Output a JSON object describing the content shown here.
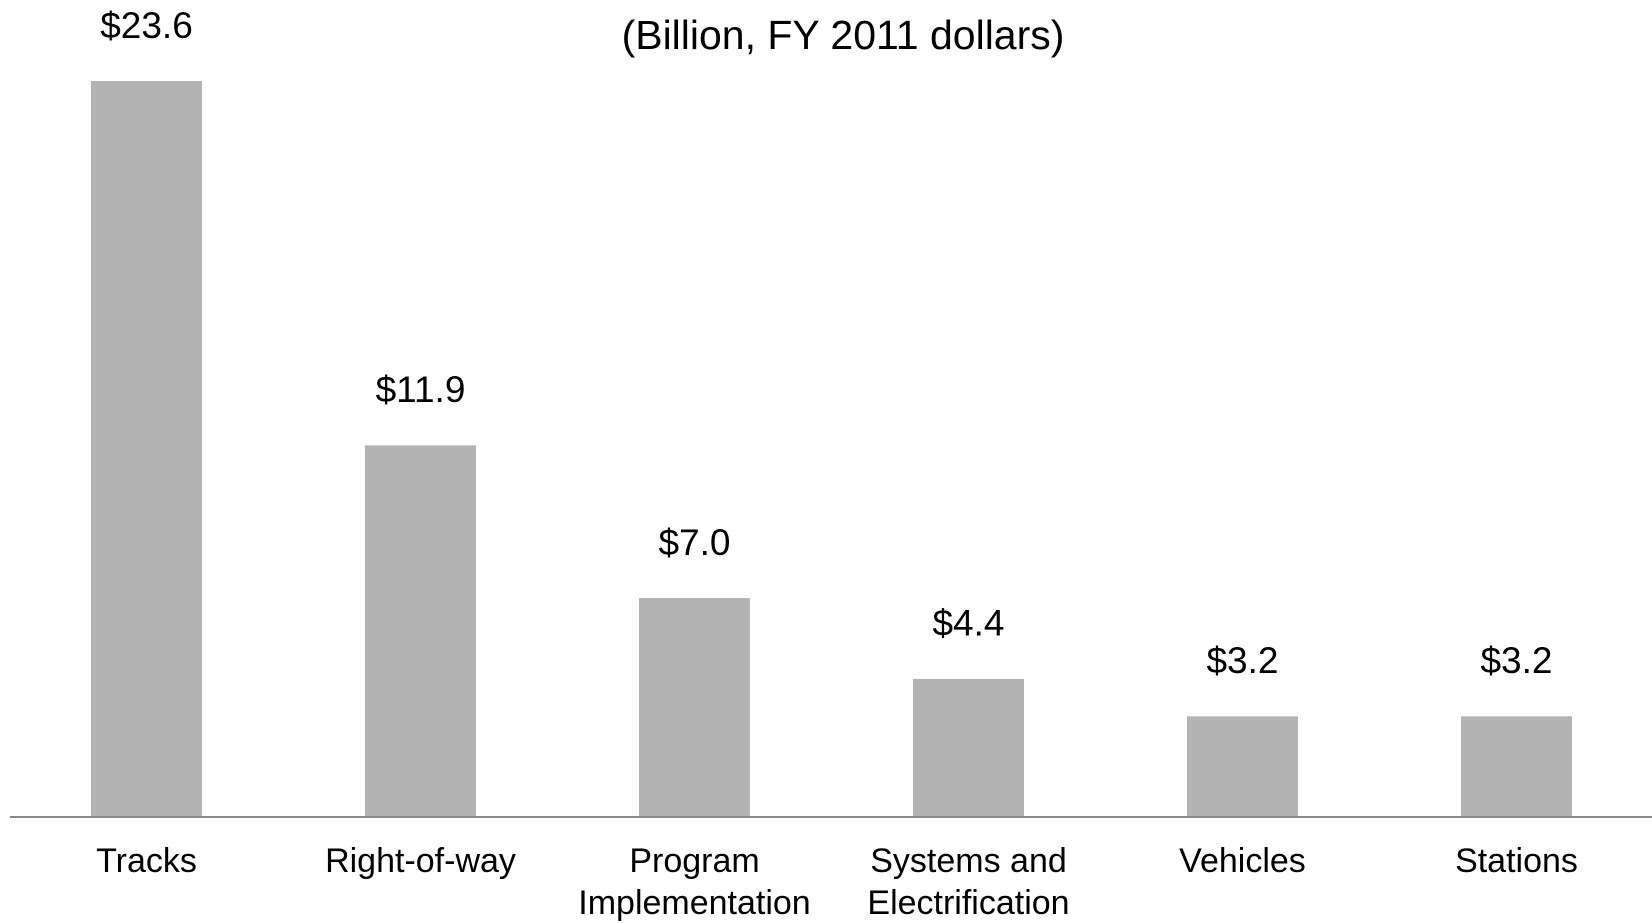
{
  "chart_data": {
    "type": "bar",
    "title": "(Billion, FY 2011 dollars)",
    "categories": [
      "Tracks",
      "Right-of-way",
      "Program Implementation",
      "Systems and Electrification",
      "Vehicles",
      "Stations"
    ],
    "values": [
      23.6,
      11.9,
      7.0,
      4.4,
      3.2,
      3.2
    ],
    "value_labels": [
      "$23.6",
      "$11.9",
      "$7.0",
      "$4.4",
      "$3.2",
      "$3.2"
    ],
    "color": "#b3b3b3"
  }
}
